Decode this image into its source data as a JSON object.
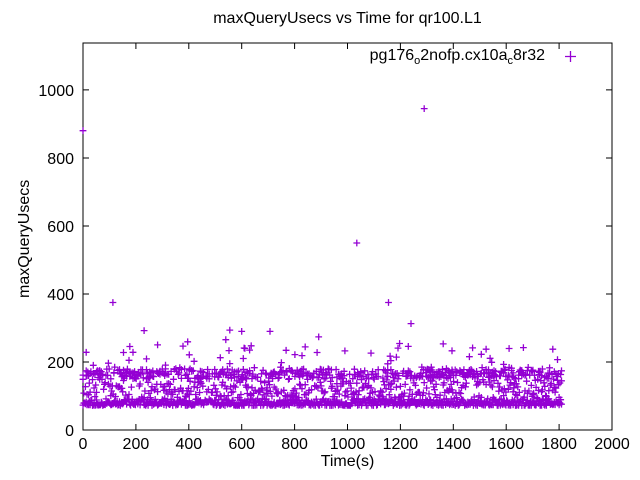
{
  "window": {
    "background": "#ffffff",
    "foreground": "#000000"
  },
  "chart": {
    "title": "maxQueryUsecs vs Time for qr100.L1",
    "xlabel": "Time(s)",
    "ylabel": "maxQueryUsecs",
    "legend": {
      "part1": "pg176",
      "sub1": "o",
      "part2": "2nofp.cx10a",
      "sub2": "c",
      "part3": "8r32",
      "marker_glyph": "plus",
      "marker_color": "#9400D3"
    }
  },
  "chart_data": {
    "type": "scatter",
    "title": "maxQueryUsecs vs Time for qr100.L1",
    "xlabel": "Time(s)",
    "ylabel": "maxQueryUsecs",
    "xlim": [
      0,
      2000
    ],
    "ylim": [
      0,
      1138
    ],
    "x_ticks": [
      0,
      200,
      400,
      600,
      800,
      1000,
      1200,
      1400,
      1600,
      1800,
      2000
    ],
    "y_ticks": [
      0,
      200,
      400,
      600,
      800,
      1000
    ],
    "grid": false,
    "legend_position": "top-right-inside",
    "series": [
      {
        "name": "pg176_o2nofp.cx10a_c8r32",
        "marker": "plus",
        "color": "#9400D3",
        "t_range": [
          0,
          1810
        ],
        "dense_band_range": [
          70,
          260
        ]
      }
    ],
    "outliers": [
      [
        0,
        880
      ],
      [
        113,
        375
      ],
      [
        707,
        290
      ],
      [
        1035,
        550
      ],
      [
        1155,
        375
      ],
      [
        1240,
        313
      ],
      [
        1290,
        945
      ]
    ],
    "cloud": {
      "seed": 1337,
      "t_min": 0,
      "t_max": 1809,
      "t_step": 3,
      "bands": [
        {
          "name": "floor",
          "prob": 1.0,
          "base": 72,
          "range": 20,
          "skew": 1.7
        },
        {
          "name": "mid",
          "prob": 0.85,
          "base": 95,
          "range": 90,
          "skew": 1.15
        },
        {
          "name": "streak",
          "prob": 0.45,
          "base": 150,
          "range": 30,
          "skew": 1.0
        },
        {
          "name": "high",
          "prob": 0.075,
          "base": 188,
          "range": 72,
          "skew": 1.0
        },
        {
          "name": "spike",
          "prob": 0.01,
          "base": 262,
          "range": 58,
          "skew": 1.0
        }
      ]
    }
  }
}
